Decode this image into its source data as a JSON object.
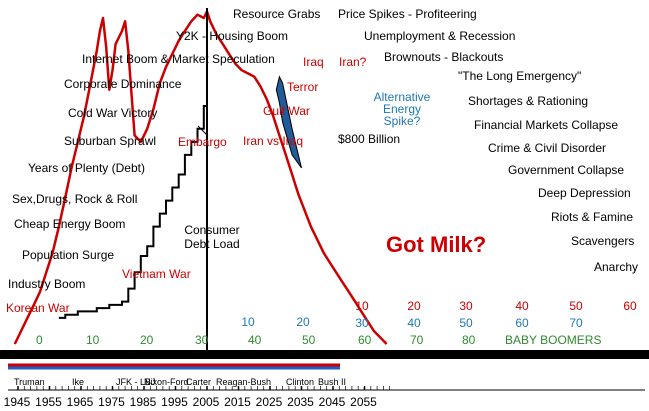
{
  "chart_data": {
    "type": "line",
    "series": [
      {
        "key": "energy",
        "x": [
          1944,
          1946,
          1948,
          1950,
          1952,
          1954,
          1956,
          1958,
          1960,
          1962,
          1964,
          1966,
          1968,
          1970,
          1971,
          1972,
          1973,
          1974,
          1975,
          1976,
          1978,
          1979,
          1980,
          1982,
          1984,
          1985,
          1986,
          1988,
          1990,
          1992,
          1994,
          1996,
          1998,
          2000,
          2002,
          2004,
          2005,
          2006,
          2008,
          2010,
          2012,
          2014,
          2016,
          2018,
          2020,
          2022,
          2024,
          2026,
          2028,
          2030,
          2032,
          2034,
          2036,
          2038,
          2040,
          2042,
          2044,
          2046,
          2048,
          2050,
          2052,
          2054,
          2056,
          2058,
          2060,
          2062
        ],
        "y": [
          0,
          4,
          8,
          12,
          16,
          22,
          28,
          36,
          45,
          54,
          62,
          70,
          80,
          90,
          96,
          100,
          91,
          78,
          84,
          92,
          96,
          99,
          90,
          64,
          62,
          64,
          66,
          72,
          80,
          85,
          89,
          93,
          96,
          99,
          101,
          100,
          102,
          99,
          95,
          92,
          89,
          86,
          84,
          83,
          82,
          79,
          75,
          70,
          64,
          58,
          52,
          46,
          41,
          36,
          32,
          28,
          25,
          22,
          19,
          16,
          13,
          10,
          7,
          4,
          2,
          0
        ]
      },
      {
        "key": "debt",
        "x": [
          1958,
          1960,
          1962,
          1964,
          1966,
          1968,
          1970,
          1972,
          1974,
          1976,
          1978,
          1980,
          1982,
          1984,
          1986,
          1988,
          1990,
          1992,
          1994,
          1996,
          1998,
          2000,
          2002,
          2004,
          2005
        ],
        "y": [
          8,
          9,
          9,
          10,
          10,
          10,
          11,
          11,
          12,
          12,
          13,
          17,
          22,
          27,
          30,
          36,
          40,
          44,
          48,
          52,
          58,
          62,
          66,
          73,
          78
        ]
      }
    ],
    "shaded_region": {
      "label": "Alternative Energy Spike?",
      "x": [
        2027,
        2028,
        2029,
        2032,
        2035
      ],
      "top": [
        78,
        82,
        80,
        66,
        54
      ],
      "bottom": [
        78,
        74,
        68,
        58,
        54
      ]
    },
    "x_ticks": [
      "1945",
      "1955",
      "1965",
      "1975",
      "1985",
      "1995",
      "2005",
      "2015",
      "2025",
      "2035",
      "2045",
      "2055"
    ],
    "presidents": [
      "Truman",
      "Ike",
      "JFK - LBJ",
      "Nixon-Ford",
      "Carter",
      "Reagan-Bush",
      "Clinton",
      "Bush II"
    ],
    "ages_row1": [
      "0",
      "10",
      "20",
      "30",
      "40",
      "50",
      "60",
      "70",
      "80"
    ],
    "ages_red": [
      "10",
      "20",
      "30",
      "40",
      "50",
      "60"
    ],
    "ages_blue": [
      "10",
      "20",
      "30",
      "40",
      "50",
      "60",
      "70"
    ],
    "baby_boomers": "BABY BOOMERS",
    "center_title": "Got Milk?",
    "debt_label": "$800 Billion",
    "debt_series_label": "Consumer Debt Load",
    "left_events": [
      {
        "text": "Resource Grabs",
        "color": "#000000"
      },
      {
        "text": "Y2K - Housing Boom",
        "color": "#000000"
      },
      {
        "text": "Internet Boom & Market Speculation",
        "color": "#000000"
      },
      {
        "text": "Iraq",
        "color": "#cc0000"
      },
      {
        "text": "Corporate Dominance",
        "color": "#000000"
      },
      {
        "text": "Terror",
        "color": "#cc0000"
      },
      {
        "text": "Cold War Victory",
        "color": "#000000"
      },
      {
        "text": "Gulf War",
        "color": "#cc0000"
      },
      {
        "text": "Embargo",
        "color": "#cc0000"
      },
      {
        "text": "Iran vs Iraq",
        "color": "#cc0000"
      },
      {
        "text": "Suburban Sprawl",
        "color": "#000000"
      },
      {
        "text": "Years of Plenty (Debt)",
        "color": "#000000"
      },
      {
        "text": "Sex,Drugs, Rock & Roll",
        "color": "#000000"
      },
      {
        "text": "Cheap Energy Boom",
        "color": "#000000"
      },
      {
        "text": "Population Surge",
        "color": "#000000"
      },
      {
        "text": "Vietnam War",
        "color": "#cc0000"
      },
      {
        "text": "Industry Boom",
        "color": "#000000"
      },
      {
        "text": "Korean War",
        "color": "#cc0000"
      }
    ],
    "right_events": [
      {
        "text": "Price Spikes - Profiteering",
        "color": "#000000"
      },
      {
        "text": "Unemployment & Recession",
        "color": "#000000"
      },
      {
        "text": "Iran?",
        "color": "#cc0000"
      },
      {
        "text": "Brownouts - Blackouts",
        "color": "#000000"
      },
      {
        "text": "\"The Long Emergency\"",
        "color": "#000000"
      },
      {
        "text": "Shortages & Rationing",
        "color": "#000000"
      },
      {
        "text": "Financial Markets Collapse",
        "color": "#000000"
      },
      {
        "text": "Crime & Civil Disorder",
        "color": "#000000"
      },
      {
        "text": "Government Collapse",
        "color": "#000000"
      },
      {
        "text": "Deep Depression",
        "color": "#000000"
      },
      {
        "text": "Riots & Famine",
        "color": "#000000"
      },
      {
        "text": "Scavengers",
        "color": "#000000"
      },
      {
        "text": "Anarchy",
        "color": "#000000"
      }
    ],
    "colors": {
      "energy": "#cc0000",
      "debt": "#000000",
      "shade": "#1f5c99",
      "alt_label": "#1f77b4",
      "ages_row1": "#2e8b2e",
      "ages_blue": "#1f77b4",
      "ages_red": "#cc0000",
      "band_red": "#cc0000",
      "band_blue": "#1f5cc8"
    }
  }
}
